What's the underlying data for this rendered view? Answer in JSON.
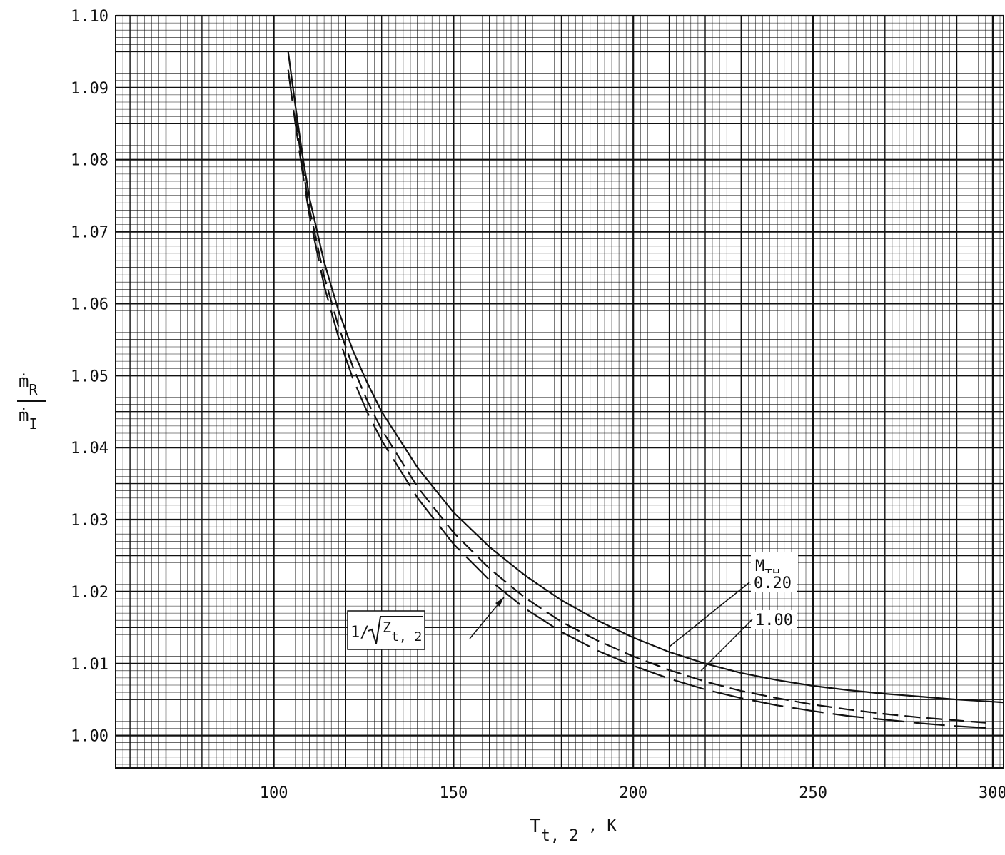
{
  "chart_data": {
    "type": "line",
    "xlabel": {
      "main": "T",
      "sub": "t, 2",
      "unit": " , K"
    },
    "ylabel": {
      "num_main": "ṁ",
      "num_sub": "R",
      "den_main": "ṁ",
      "den_sub": "I"
    },
    "xlim": [
      56,
      303
    ],
    "ylim": [
      0.9955,
      1.1
    ],
    "x_ticks": [
      100,
      150,
      200,
      250,
      300
    ],
    "x_tick_labels": [
      "100",
      "150",
      "200",
      "250",
      "300"
    ],
    "y_ticks": [
      1.0,
      1.01,
      1.02,
      1.03,
      1.04,
      1.05,
      1.06,
      1.07,
      1.08,
      1.09,
      1.1
    ],
    "y_tick_labels": [
      "1.00",
      "1.01",
      "1.02",
      "1.03",
      "1.04",
      "1.05",
      "1.06",
      "1.07",
      "1.08",
      "1.09",
      "1.10"
    ],
    "grid": true,
    "grid_minor_x": 2,
    "grid_minor_y": 0.001,
    "legend": "none (curves labeled by callouts)",
    "annotations": {
      "sqrt_label": {
        "prefix": "1/",
        "main": "Z",
        "sub": "t, 2"
      },
      "mach_header": {
        "main": "M",
        "sub": "TH"
      },
      "mach_values": [
        "0.20",
        "1.00"
      ]
    },
    "series": [
      {
        "name": "0.20",
        "style": "solid",
        "x": [
          104,
          106,
          108,
          110,
          114,
          118,
          122,
          126,
          130,
          140,
          150,
          160,
          170,
          180,
          190,
          200,
          210,
          220,
          230,
          240,
          250,
          260,
          270,
          280,
          290,
          300,
          303
        ],
        "y": [
          1.095,
          1.0875,
          1.0805,
          1.0745,
          1.0658,
          1.059,
          1.0535,
          1.049,
          1.045,
          1.0372,
          1.031,
          1.0262,
          1.0222,
          1.0188,
          1.016,
          1.0136,
          1.0116,
          1.01,
          1.0087,
          1.0077,
          1.0069,
          1.0063,
          1.0058,
          1.0054,
          1.005,
          1.0047,
          1.0046
        ]
      },
      {
        "name": "1.00",
        "style": "dashed",
        "x": [
          106,
          108,
          110,
          114,
          118,
          122,
          126,
          130,
          140,
          150,
          160,
          170,
          180,
          190,
          200,
          210,
          220,
          230,
          240,
          250,
          260,
          270,
          280,
          290,
          300
        ],
        "y": [
          1.086,
          1.079,
          1.073,
          1.0638,
          1.0568,
          1.0512,
          1.0465,
          1.0425,
          1.0345,
          1.0282,
          1.0232,
          1.0191,
          1.0158,
          1.0132,
          1.011,
          1.0091,
          1.0075,
          1.0062,
          1.0052,
          1.0043,
          1.0036,
          1.003,
          1.0025,
          1.0021,
          1.0017
        ]
      },
      {
        "name": "1/√Z t,2",
        "style": "long-dash",
        "x": [
          104,
          106,
          108,
          110,
          114,
          118,
          122,
          126,
          130,
          140,
          150,
          160,
          170,
          180,
          190,
          200,
          210,
          220,
          230,
          240,
          250,
          260,
          270,
          280,
          290,
          300
        ],
        "y": [
          1.0925,
          1.085,
          1.0782,
          1.072,
          1.0625,
          1.0553,
          1.0496,
          1.0449,
          1.041,
          1.033,
          1.0266,
          1.0216,
          1.0176,
          1.0144,
          1.0118,
          1.0097,
          1.0079,
          1.0064,
          1.0052,
          1.0042,
          1.0034,
          1.0027,
          1.0022,
          1.0017,
          1.0013,
          1.001
        ]
      }
    ]
  }
}
